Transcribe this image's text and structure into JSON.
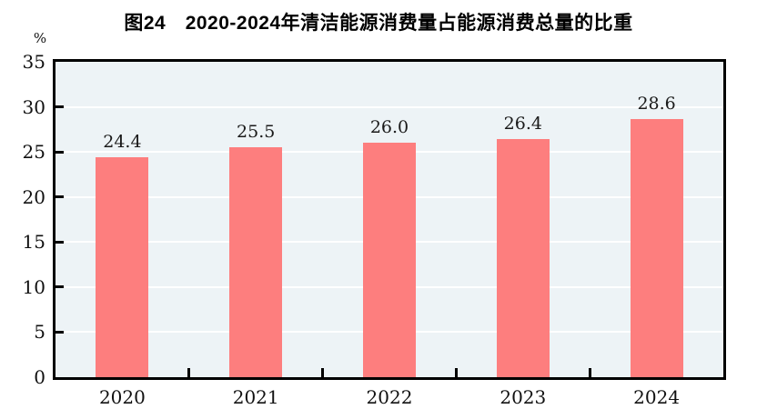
{
  "chart_data": {
    "type": "bar",
    "title": "图24　2020-2024年清洁能源消费量占能源消费总量的比重",
    "unit_label": "%",
    "categories": [
      "2020",
      "2021",
      "2022",
      "2023",
      "2024"
    ],
    "series": [
      {
        "name": "清洁能源消费量占能源消费总量的比重",
        "values": [
          24.4,
          25.5,
          26.0,
          26.4,
          28.6
        ],
        "value_labels": [
          "24.4",
          "25.5",
          "26.0",
          "26.4",
          "28.6"
        ]
      }
    ],
    "xlabel": "",
    "ylabel": "%",
    "ylim": [
      0,
      35
    ],
    "yticks": [
      0,
      5,
      10,
      15,
      20,
      25,
      30,
      35
    ],
    "grid": "horizontal",
    "legend": "none",
    "colors": {
      "bar": "#FD7E7E",
      "plot_background": "#EDF3F6",
      "gridline": "#FFFFFF",
      "axis": "#000000",
      "text": "#111111",
      "page_background": "#FFFFFF"
    }
  }
}
